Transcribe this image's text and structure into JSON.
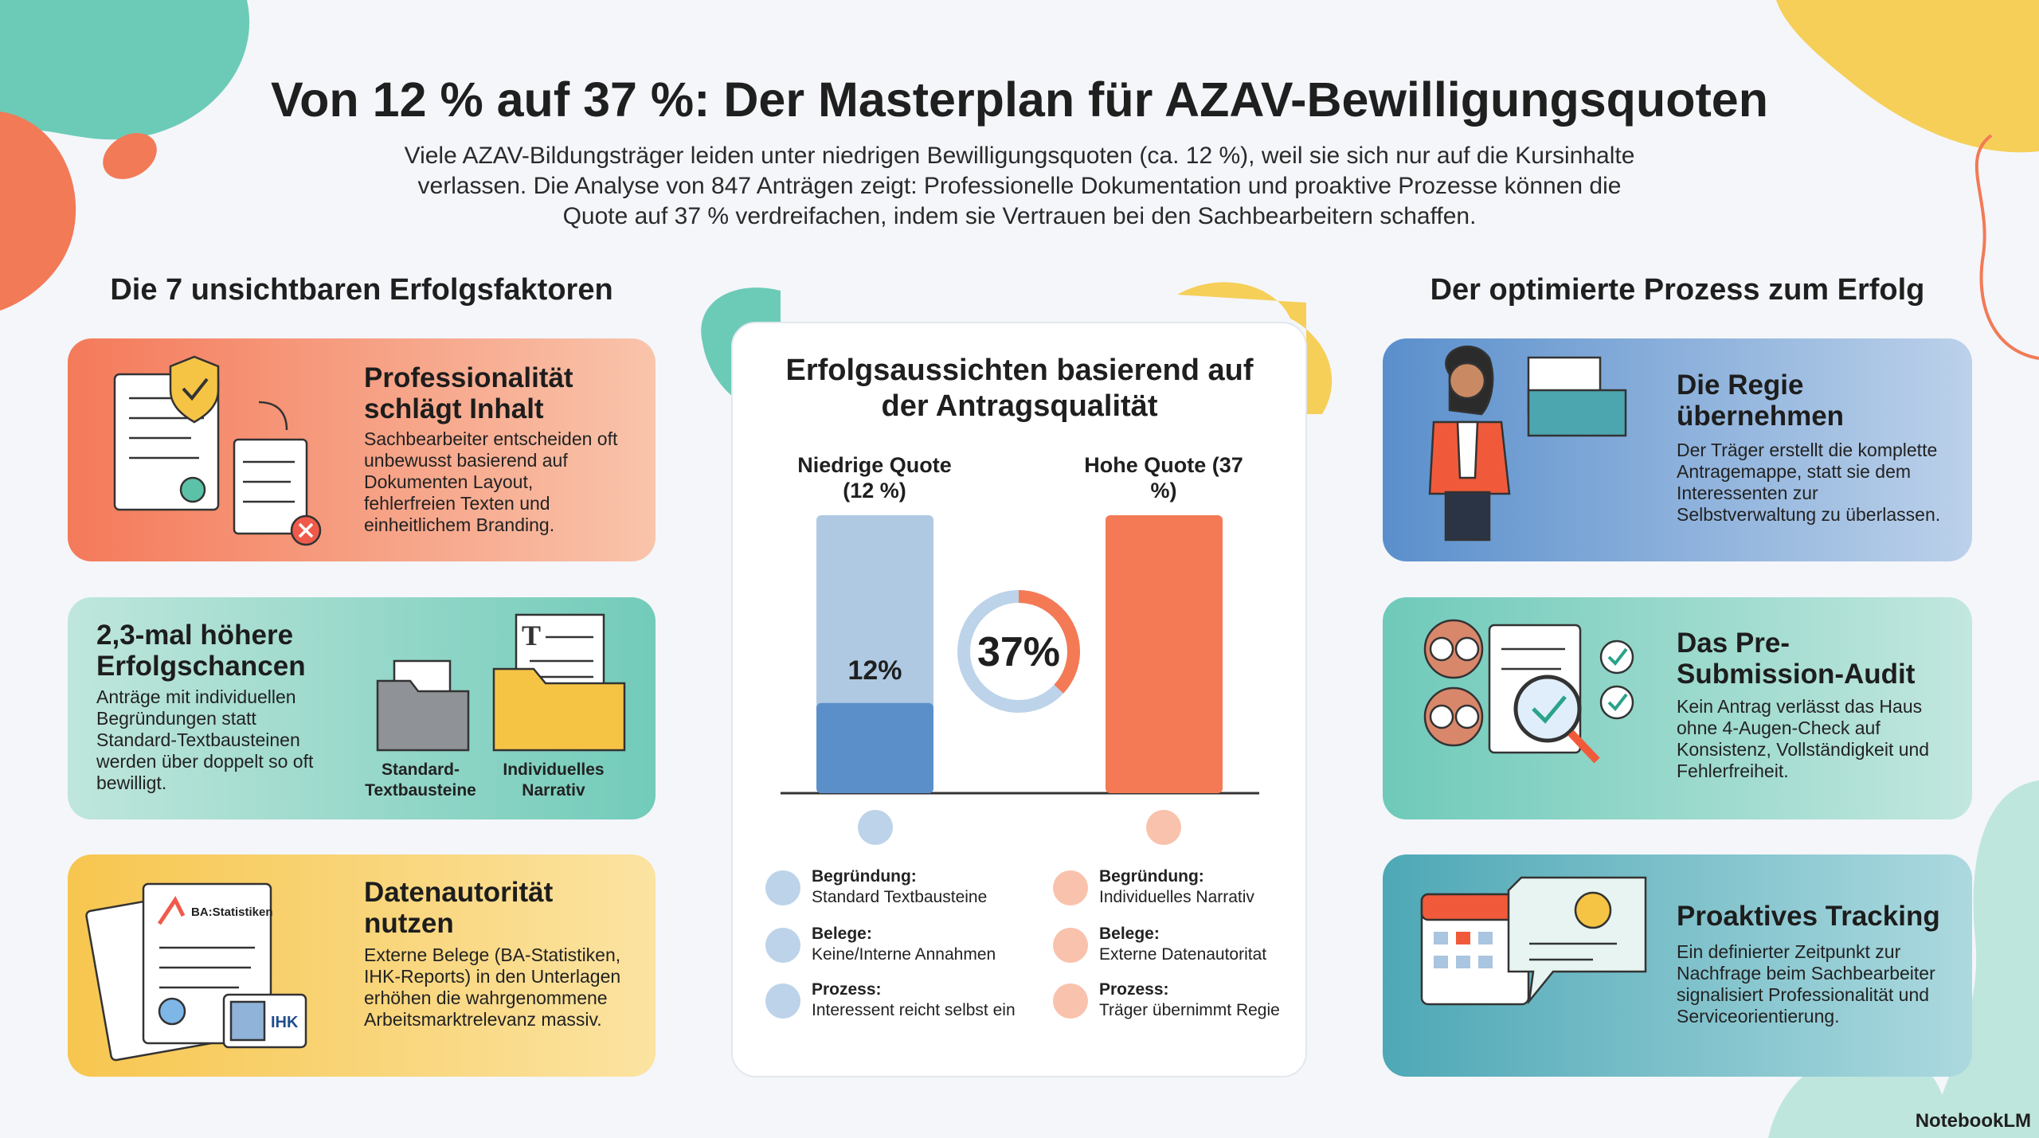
{
  "header": {
    "title": "Von 12 % auf 37 %: Der Masterplan für AZAV-Bewilligungsquoten",
    "intro": "Viele AZAV-Bildungsträger leiden unter niedrigen Bewilligungsquoten (ca. 12 %), weil sie sich nur auf die Kursinhalte verlassen. Die Analyse von 847 Anträgen zeigt: Professionelle Dokumentation und proaktive Prozesse können die Quote auf 37 % verdreifachen, indem sie Vertrauen bei den Sachbearbeitern schaffen."
  },
  "factors": {
    "heading": "Die 7 unsichtbaren Erfolgsfaktoren",
    "cards": [
      {
        "title": "Professionalität schlägt Inhalt",
        "text": "Sachbearbeiter entscheiden oft unbewusst basierend auf Dokumenten Layout, fehlerfreien Texten und einheitlichem Branding."
      },
      {
        "title": "2,3-mal höhere Erfolgschancen",
        "text": "Anträge mit individuellen Begründungen statt Standard-Textbausteinen werden über doppelt so oft bewilligt.",
        "labels": [
          "Standard-Textbausteine",
          "Individuelles Narrativ"
        ]
      },
      {
        "title": "Datenautorität nutzen",
        "text": "Externe Belege (BA-Statistiken, IHK-Reports) in den Unterlagen erhöhen die wahrgenommene Arbeitsmarktrelevanz massiv.",
        "labels": [
          "BA:Statistiken",
          "IHK"
        ]
      }
    ]
  },
  "chart": {
    "type": "bar",
    "title": "Erfolgsaussichten basierend auf der Antragsqualität",
    "categories": [
      "Niedrige Quote (12 %)",
      "Hohe Quote (37 %)"
    ],
    "values": [
      12,
      37
    ],
    "value_labels": [
      "12%",
      "37%"
    ],
    "colors": [
      "#5b8fc9",
      "#f47a55"
    ],
    "comparison": [
      [
        {
          "label": "Begründung:",
          "text": "Standard Textbausteine"
        },
        {
          "label": "Belege:",
          "text": "Keine/Interne Annahmen"
        },
        {
          "label": "Prozess:",
          "text": "Interessent reicht selbst ein"
        }
      ],
      [
        {
          "label": "Begründung:",
          "text": "Individuelles Narrativ"
        },
        {
          "label": "Belege:",
          "text": "Externe Datenautoritat"
        },
        {
          "label": "Prozess:",
          "text": "Träger übernimmt Regie"
        }
      ]
    ]
  },
  "process": {
    "heading": "Der optimierte Prozess zum Erfolg",
    "cards": [
      {
        "title": "Die Regie übernehmen",
        "text": "Der Träger erstellt die komplette Antragemappe, statt sie dem Interessenten zur Selbstverwaltung zu überlassen."
      },
      {
        "title": "Das Pre-Submission-Audit",
        "text": "Kein Antrag verlässt das Haus ohne 4-Augen-Check auf Konsistenz, Vollständigkeit und Fehlerfreiheit."
      },
      {
        "title": "Proaktives Tracking",
        "text": "Ein definierter Zeitpunkt zur Nachfrage beim Sachbearbeiter signalisiert Professionalität und Serviceorientierung."
      }
    ]
  },
  "footer": {
    "brand": "NotebookLM"
  }
}
